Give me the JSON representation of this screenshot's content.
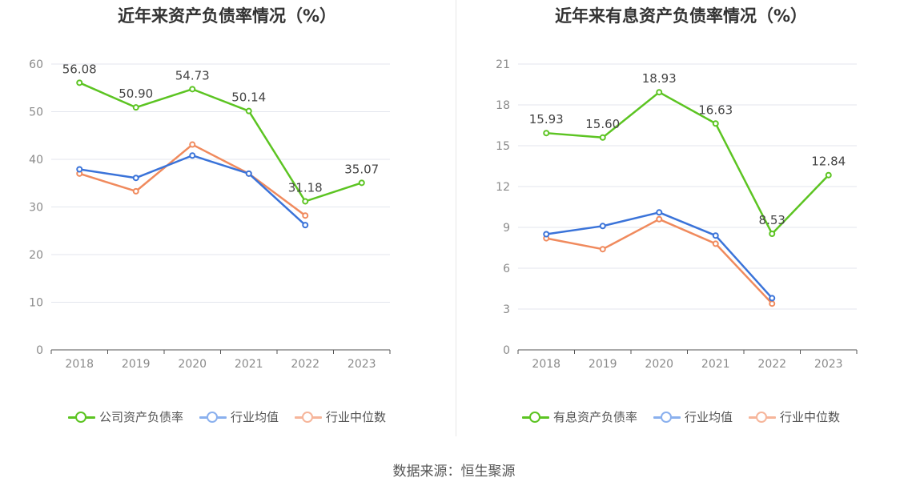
{
  "source": "数据来源：恒生聚源",
  "chart_data": [
    {
      "type": "line",
      "title": "近年来资产负债率情况（%）",
      "categories": [
        "2018",
        "2019",
        "2020",
        "2021",
        "2022",
        "2023"
      ],
      "ylim": [
        0,
        60
      ],
      "yticks": [
        0,
        10,
        20,
        30,
        40,
        50,
        60
      ],
      "ytick_labels": [
        "0",
        "10",
        "20",
        "30",
        "40",
        "50",
        "60"
      ],
      "grid": true,
      "legend_position": "bottom",
      "series": [
        {
          "name": "公司资产负债率",
          "color": "#5cc422",
          "legend_color": "#5cc422",
          "values": [
            56.08,
            50.9,
            54.73,
            50.14,
            31.18,
            35.07
          ],
          "labels": [
            "56.08",
            "50.90",
            "54.73",
            "50.14",
            "31.18",
            "35.07"
          ]
        },
        {
          "name": "行业均值",
          "color": "#3a73d9",
          "legend_color": "#8ab0ee",
          "values": [
            37.9,
            36.1,
            40.8,
            37.0,
            26.2,
            null
          ]
        },
        {
          "name": "行业中位数",
          "color": "#f08a5d",
          "legend_color": "#f6b59a",
          "values": [
            37.0,
            33.3,
            43.1,
            37.0,
            28.2,
            null
          ]
        }
      ]
    },
    {
      "type": "line",
      "title": "近年来有息资产负债率情况（%）",
      "categories": [
        "2018",
        "2019",
        "2020",
        "2021",
        "2022",
        "2023"
      ],
      "ylim": [
        0,
        21
      ],
      "yticks": [
        0,
        3,
        6,
        9,
        12,
        15,
        18,
        21
      ],
      "ytick_labels": [
        "0",
        "3",
        "6",
        "9",
        "12",
        "15",
        "18",
        "21"
      ],
      "grid": true,
      "legend_position": "bottom",
      "series": [
        {
          "name": "有息资产负债率",
          "color": "#5cc422",
          "legend_color": "#5cc422",
          "values": [
            15.93,
            15.6,
            18.93,
            16.63,
            8.53,
            12.84
          ],
          "labels": [
            "15.93",
            "15.60",
            "18.93",
            "16.63",
            "8.53",
            "12.84"
          ]
        },
        {
          "name": "行业均值",
          "color": "#3a73d9",
          "legend_color": "#8ab0ee",
          "values": [
            8.5,
            9.1,
            10.1,
            8.4,
            3.8,
            null
          ]
        },
        {
          "name": "行业中位数",
          "color": "#f08a5d",
          "legend_color": "#f6b59a",
          "values": [
            8.2,
            7.4,
            9.6,
            7.8,
            3.4,
            null
          ]
        }
      ]
    }
  ]
}
